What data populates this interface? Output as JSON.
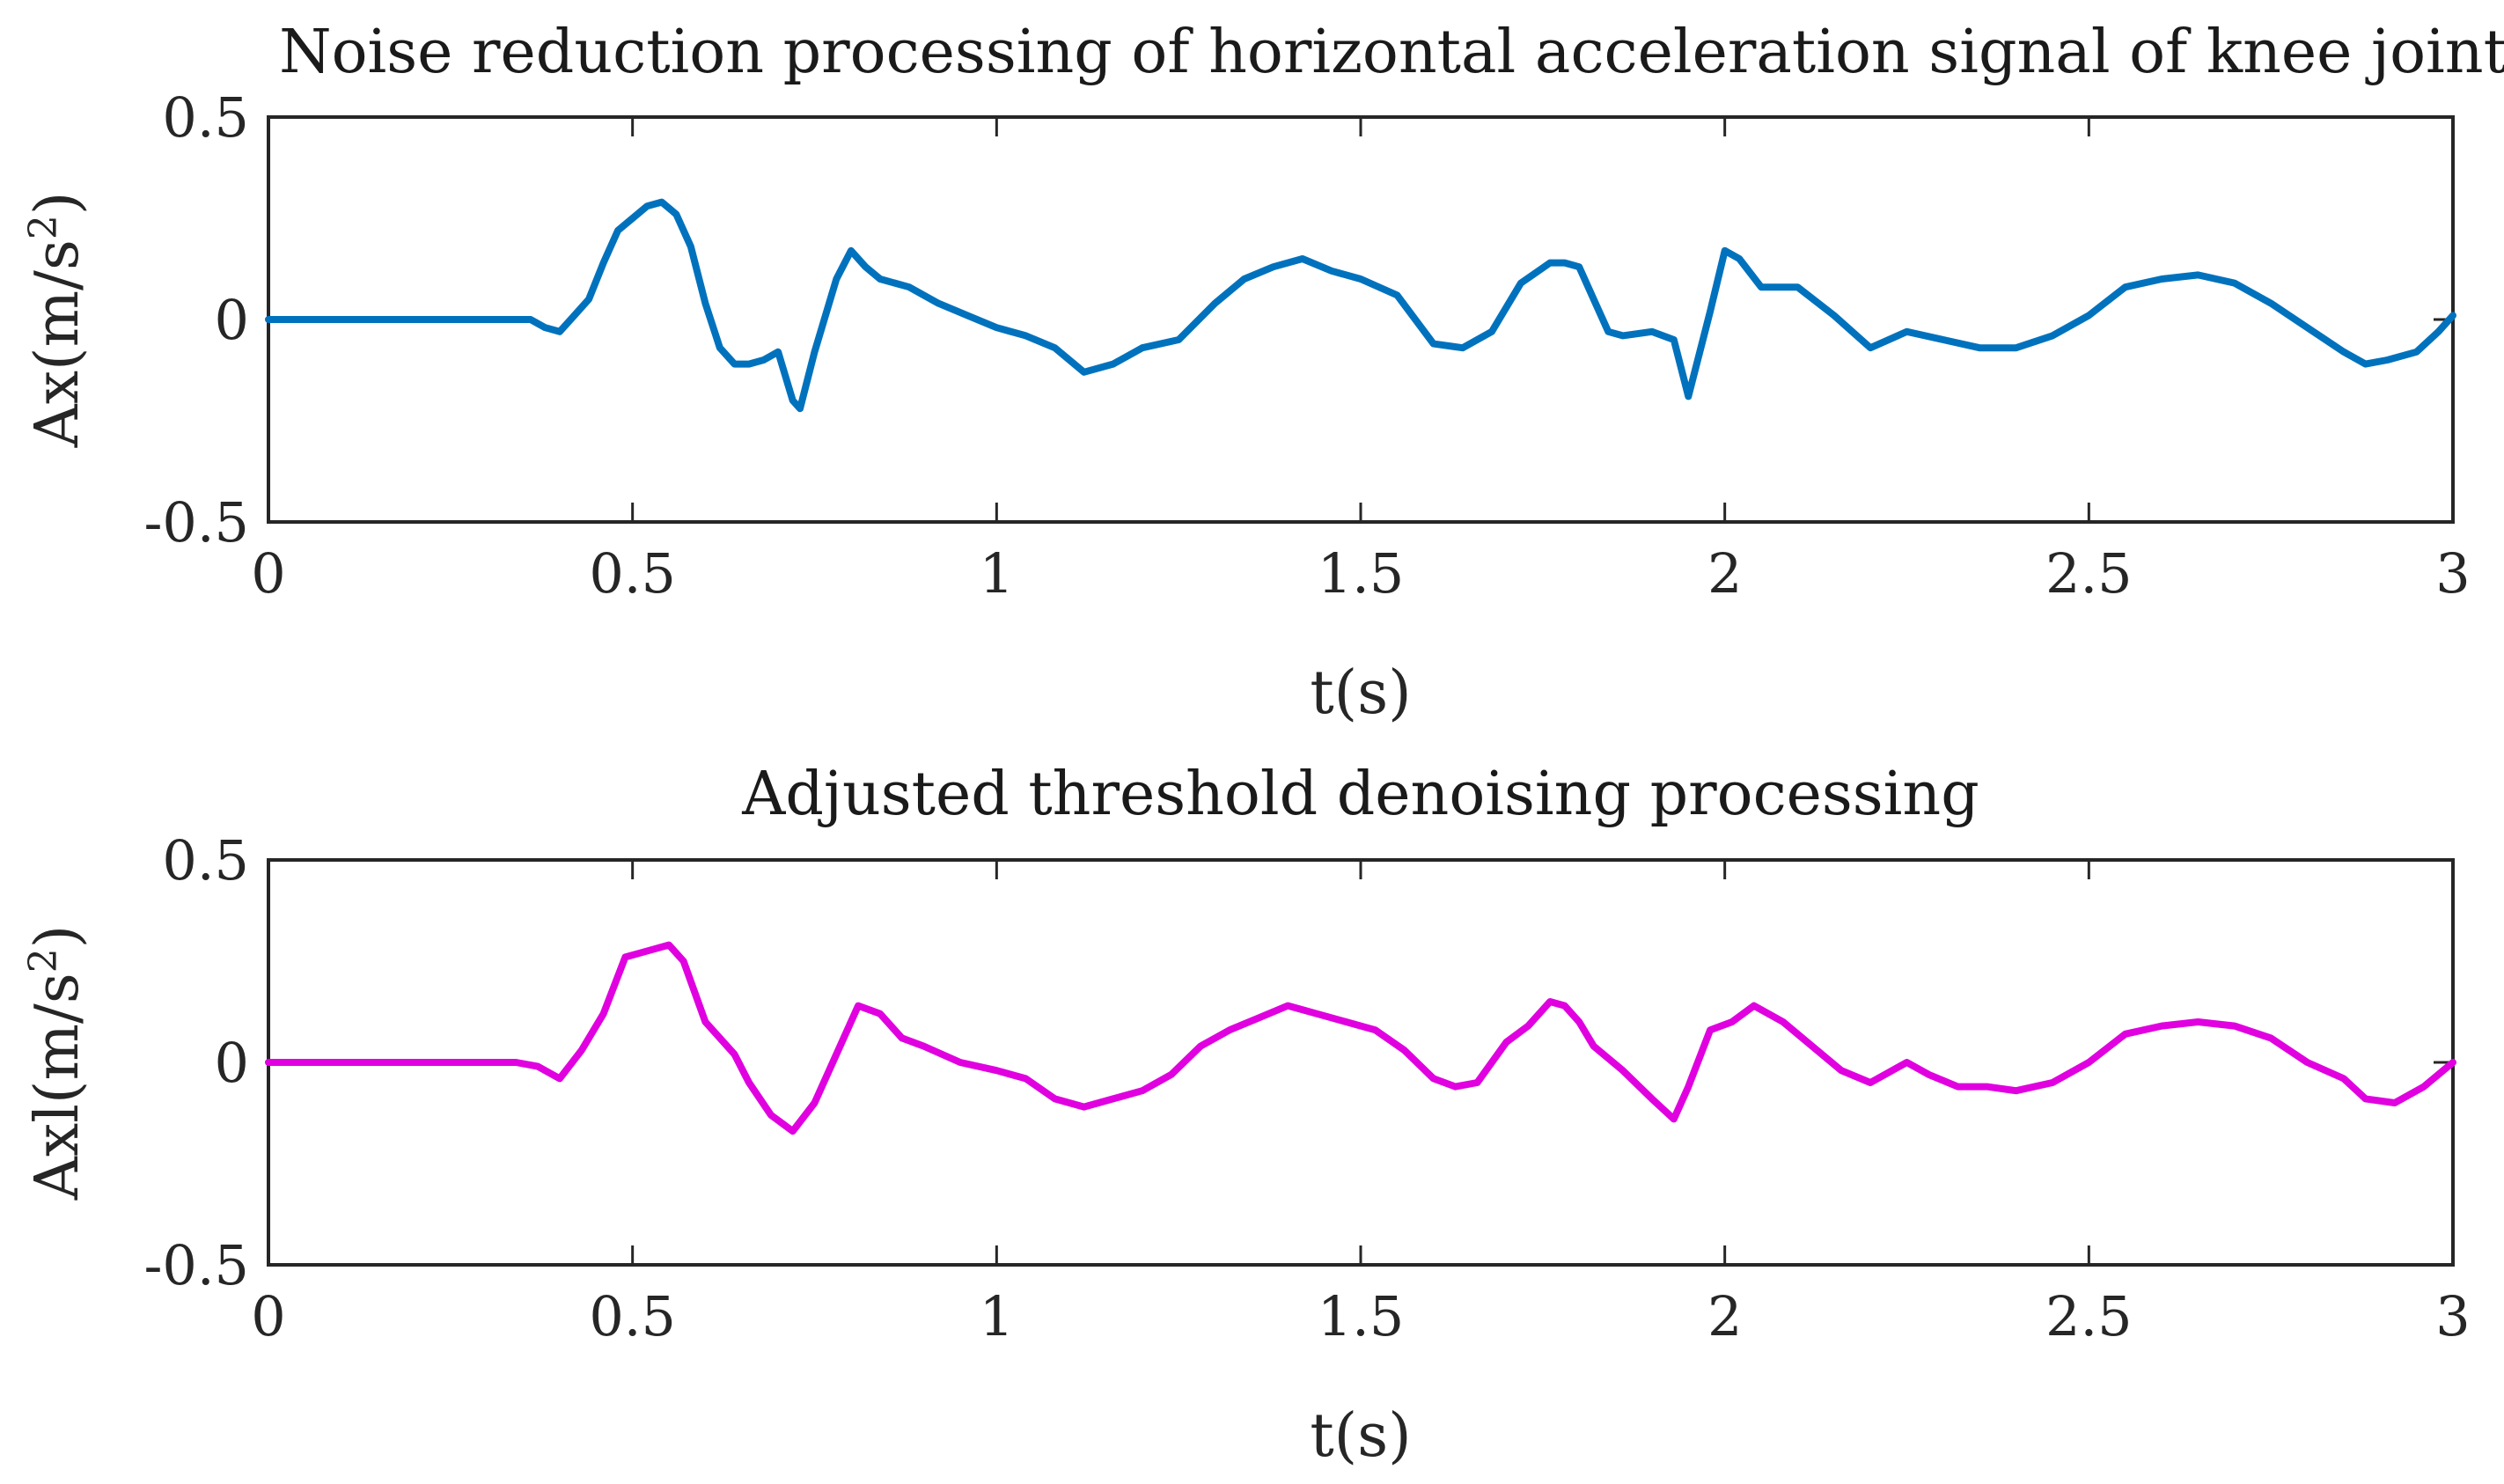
{
  "chart_data": [
    {
      "type": "line",
      "title": "Noise reduction processing of horizontal acceleration signal of knee joint",
      "xlabel": "t(s)",
      "ylabel": {
        "base": "Ax(m/s",
        "sup": "2",
        "close": ")"
      },
      "xlim": [
        0,
        3
      ],
      "ylim": [
        -0.5,
        0.5
      ],
      "xticks": [
        0,
        0.5,
        1,
        1.5,
        2,
        2.5,
        3
      ],
      "xtick_labels": [
        "0",
        "0.5",
        "1",
        "1.5",
        "2",
        "2.5",
        "3"
      ],
      "yticks": [
        -0.5,
        0,
        0.5
      ],
      "ytick_labels": [
        "-0.5",
        "0",
        "0.5"
      ],
      "grid": false,
      "color": "#0072BD",
      "series": [
        {
          "name": "Ax",
          "x": [
            0,
            0.36,
            0.38,
            0.4,
            0.42,
            0.44,
            0.46,
            0.48,
            0.5,
            0.52,
            0.54,
            0.56,
            0.58,
            0.6,
            0.62,
            0.64,
            0.66,
            0.68,
            0.7,
            0.72,
            0.73,
            0.75,
            0.78,
            0.8,
            0.82,
            0.84,
            0.88,
            0.92,
            0.96,
            1.0,
            1.04,
            1.08,
            1.12,
            1.16,
            1.2,
            1.25,
            1.3,
            1.34,
            1.38,
            1.42,
            1.46,
            1.5,
            1.55,
            1.6,
            1.64,
            1.68,
            1.72,
            1.76,
            1.78,
            1.8,
            1.82,
            1.84,
            1.86,
            1.9,
            1.93,
            1.95,
            1.98,
            2.0,
            2.02,
            2.05,
            2.1,
            2.15,
            2.2,
            2.25,
            2.3,
            2.35,
            2.4,
            2.45,
            2.5,
            2.55,
            2.6,
            2.65,
            2.7,
            2.75,
            2.8,
            2.85,
            2.88,
            2.91,
            2.95,
            2.98,
            3.0
          ],
          "y": [
            0,
            0,
            -0.02,
            -0.03,
            0.01,
            0.05,
            0.14,
            0.22,
            0.25,
            0.28,
            0.29,
            0.26,
            0.18,
            0.04,
            -0.07,
            -0.11,
            -0.11,
            -0.1,
            -0.08,
            -0.2,
            -0.22,
            -0.08,
            0.1,
            0.17,
            0.13,
            0.1,
            0.08,
            0.04,
            0.01,
            -0.02,
            -0.04,
            -0.07,
            -0.13,
            -0.11,
            -0.07,
            -0.05,
            0.04,
            0.1,
            0.13,
            0.15,
            0.12,
            0.1,
            0.06,
            -0.06,
            -0.07,
            -0.03,
            0.09,
            0.14,
            0.14,
            0.13,
            0.05,
            -0.03,
            -0.04,
            -0.03,
            -0.05,
            -0.19,
            0.02,
            0.17,
            0.15,
            0.08,
            0.08,
            0.01,
            -0.07,
            -0.03,
            -0.05,
            -0.07,
            -0.07,
            -0.04,
            0.01,
            0.08,
            0.1,
            0.11,
            0.09,
            0.04,
            -0.02,
            -0.08,
            -0.11,
            -0.1,
            -0.08,
            -0.03,
            0.01
          ]
        }
      ]
    },
    {
      "type": "line",
      "title": "Adjusted threshold denoising processing",
      "xlabel": "t(s)",
      "ylabel": {
        "base": "Axl(m/s",
        "sup": "2",
        "close": ")"
      },
      "xlim": [
        0,
        3
      ],
      "ylim": [
        -0.5,
        0.5
      ],
      "xticks": [
        0,
        0.5,
        1,
        1.5,
        2,
        2.5,
        3
      ],
      "xtick_labels": [
        "0",
        "0.5",
        "1",
        "1.5",
        "2",
        "2.5",
        "3"
      ],
      "yticks": [
        -0.5,
        0,
        0.5
      ],
      "ytick_labels": [
        "-0.5",
        "0",
        "0.5"
      ],
      "grid": false,
      "color": "#E000E0",
      "series": [
        {
          "name": "Axl",
          "x": [
            0,
            0.3,
            0.34,
            0.37,
            0.4,
            0.43,
            0.46,
            0.49,
            0.51,
            0.53,
            0.55,
            0.57,
            0.6,
            0.64,
            0.66,
            0.69,
            0.72,
            0.75,
            0.78,
            0.81,
            0.84,
            0.87,
            0.9,
            0.95,
            1.0,
            1.04,
            1.08,
            1.12,
            1.16,
            1.2,
            1.24,
            1.28,
            1.32,
            1.36,
            1.4,
            1.44,
            1.48,
            1.52,
            1.56,
            1.6,
            1.63,
            1.66,
            1.7,
            1.73,
            1.76,
            1.78,
            1.8,
            1.82,
            1.86,
            1.9,
            1.93,
            1.95,
            1.98,
            2.01,
            2.04,
            2.08,
            2.12,
            2.16,
            2.2,
            2.25,
            2.28,
            2.32,
            2.36,
            2.4,
            2.45,
            2.5,
            2.55,
            2.6,
            2.65,
            2.7,
            2.75,
            2.8,
            2.85,
            2.88,
            2.92,
            2.96,
            3.0
          ],
          "y": [
            0,
            0,
            0.0,
            -0.01,
            -0.04,
            0.03,
            0.12,
            0.26,
            0.27,
            0.28,
            0.29,
            0.25,
            0.1,
            0.02,
            -0.05,
            -0.13,
            -0.17,
            -0.1,
            0.02,
            0.14,
            0.12,
            0.06,
            0.04,
            0.0,
            -0.02,
            -0.04,
            -0.09,
            -0.11,
            -0.09,
            -0.07,
            -0.03,
            0.04,
            0.08,
            0.11,
            0.14,
            0.12,
            0.1,
            0.08,
            0.03,
            -0.04,
            -0.06,
            -0.05,
            0.05,
            0.09,
            0.15,
            0.14,
            0.1,
            0.04,
            -0.02,
            -0.09,
            -0.14,
            -0.06,
            0.08,
            0.1,
            0.14,
            0.1,
            0.04,
            -0.02,
            -0.05,
            0.0,
            -0.03,
            -0.06,
            -0.06,
            -0.07,
            -0.05,
            0.0,
            0.07,
            0.09,
            0.1,
            0.09,
            0.06,
            0.0,
            -0.04,
            -0.09,
            -0.1,
            -0.06,
            0.0
          ]
        }
      ]
    }
  ]
}
